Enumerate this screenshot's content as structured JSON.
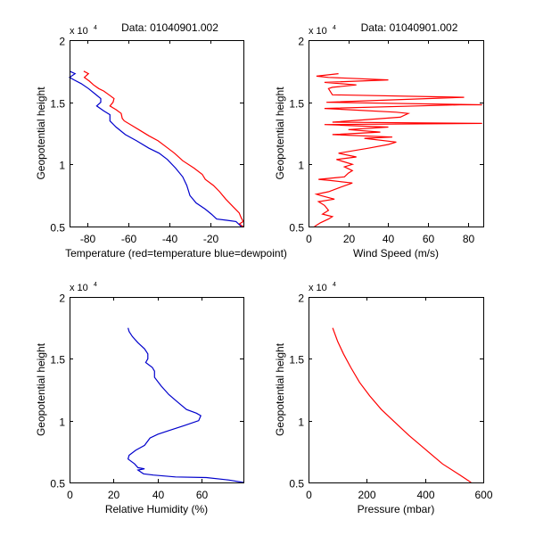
{
  "figure": {
    "background": "#ffffff"
  },
  "chart_data": [
    {
      "id": "temperature",
      "type": "line",
      "title": "Data: 01040901.002",
      "xlabel": "Temperature (red=temperature blue=dewpoint)",
      "ylabel": "Geopotential height",
      "y_multiplier": "x 10",
      "y_multiplier_exp": "4",
      "xlim": [
        -88.7,
        -3.9
      ],
      "ylim": [
        5000,
        20000
      ],
      "xticks": [
        -80,
        -60,
        -40,
        -20
      ],
      "xtick_labels": [
        "-80",
        "-60",
        "-40",
        "-20"
      ],
      "yticks": [
        5000,
        10000,
        15000,
        20000
      ],
      "ytick_labels": [
        "0.5",
        "1",
        "1.5",
        "2"
      ],
      "grid": false,
      "series": [
        {
          "name": "temperature",
          "color": "#ff0000",
          "points": [
            [
              -81.8,
              17500
            ],
            [
              -79.5,
              17300
            ],
            [
              -81.5,
              17000
            ],
            [
              -79.0,
              16700
            ],
            [
              -77.0,
              16400
            ],
            [
              -74.5,
              16100
            ],
            [
              -72.0,
              15900
            ],
            [
              -69.5,
              15600
            ],
            [
              -67.0,
              15300
            ],
            [
              -67.5,
              15000
            ],
            [
              -69.0,
              14700
            ],
            [
              -66.0,
              14400
            ],
            [
              -63.5,
              14100
            ],
            [
              -63.0,
              13700
            ],
            [
              -62.0,
              13500
            ],
            [
              -58.0,
              13100
            ],
            [
              -54.0,
              12700
            ],
            [
              -50.0,
              12300
            ],
            [
              -45.5,
              11900
            ],
            [
              -41.5,
              11400
            ],
            [
              -37.5,
              10900
            ],
            [
              -33.5,
              10300
            ],
            [
              -28.0,
              9700
            ],
            [
              -24.0,
              9200
            ],
            [
              -22.5,
              8800
            ],
            [
              -18.5,
              8300
            ],
            [
              -15.5,
              7800
            ],
            [
              -12.5,
              7200
            ],
            [
              -9.0,
              6600
            ],
            [
              -6.0,
              6100
            ],
            [
              -5.0,
              5700
            ],
            [
              -4.0,
              5400
            ],
            [
              -6.0,
              5200
            ],
            [
              -4.0,
              5000
            ]
          ]
        },
        {
          "name": "dewpoint",
          "color": "#0000cc",
          "points": [
            [
              -88.7,
              17500
            ],
            [
              -86.0,
              17300
            ],
            [
              -88.7,
              17000
            ],
            [
              -86.5,
              16800
            ],
            [
              -83.0,
              16500
            ],
            [
              -79.5,
              16100
            ],
            [
              -76.5,
              15700
            ],
            [
              -73.5,
              15300
            ],
            [
              -73.5,
              15000
            ],
            [
              -75.5,
              14700
            ],
            [
              -72.0,
              14300
            ],
            [
              -69.0,
              14000
            ],
            [
              -69.0,
              13500
            ],
            [
              -66.0,
              13000
            ],
            [
              -61.5,
              12400
            ],
            [
              -56.0,
              11900
            ],
            [
              -50.0,
              11300
            ],
            [
              -45.0,
              10900
            ],
            [
              -41.0,
              10400
            ],
            [
              -37.0,
              9700
            ],
            [
              -33.5,
              9000
            ],
            [
              -31.5,
              8300
            ],
            [
              -30.0,
              7500
            ],
            [
              -27.0,
              6900
            ],
            [
              -22.5,
              6400
            ],
            [
              -19.5,
              6000
            ],
            [
              -17.0,
              5600
            ],
            [
              -12.0,
              5500
            ],
            [
              -7.5,
              5400
            ],
            [
              -5.0,
              5000
            ]
          ]
        }
      ]
    },
    {
      "id": "wind-speed",
      "type": "line",
      "title": "Data: 01040901.002",
      "xlabel": "Wind Speed (m/s)",
      "ylabel": "Geopotential height",
      "y_multiplier": "x 10",
      "y_multiplier_exp": "4",
      "xlim": [
        0,
        87.6
      ],
      "ylim": [
        5000,
        20000
      ],
      "xticks": [
        0,
        20,
        40,
        60,
        80
      ],
      "xtick_labels": [
        "0",
        "20",
        "40",
        "60",
        "80"
      ],
      "yticks": [
        5000,
        10000,
        15000,
        20000
      ],
      "ytick_labels": [
        "0.5",
        "1",
        "1.5",
        "2"
      ],
      "grid": false,
      "series": [
        {
          "name": "wind-speed",
          "color": "#ff0000",
          "points": [
            [
              3,
              5000
            ],
            [
              6,
              5300
            ],
            [
              10,
              5600
            ],
            [
              12,
              5800
            ],
            [
              7,
              6000
            ],
            [
              10,
              6300
            ],
            [
              8,
              6700
            ],
            [
              5,
              7000
            ],
            [
              13,
              7200
            ],
            [
              6,
              7500
            ],
            [
              4,
              7600
            ],
            [
              10,
              7800
            ],
            [
              15,
              8100
            ],
            [
              22,
              8500
            ],
            [
              11,
              8700
            ],
            [
              5,
              8800
            ],
            [
              18,
              9000
            ],
            [
              20,
              9300
            ],
            [
              22,
              9500
            ],
            [
              18,
              9800
            ],
            [
              22,
              10000
            ],
            [
              14,
              10400
            ],
            [
              24,
              10600
            ],
            [
              15,
              10900
            ],
            [
              30,
              11300
            ],
            [
              40,
              11600
            ],
            [
              44,
              11800
            ],
            [
              28,
              12100
            ],
            [
              42,
              12200
            ],
            [
              12,
              12400
            ],
            [
              36,
              12600
            ],
            [
              20,
              12800
            ],
            [
              40,
              13000
            ],
            [
              8,
              13200
            ],
            [
              87,
              13300
            ],
            [
              12,
              13400
            ],
            [
              46,
              13800
            ],
            [
              50,
              14100
            ],
            [
              44,
              14200
            ],
            [
              8,
              14500
            ],
            [
              76,
              14800
            ],
            [
              87,
              14800
            ],
            [
              9,
              15000
            ],
            [
              78,
              15400
            ],
            [
              12,
              15600
            ],
            [
              10,
              16100
            ],
            [
              12,
              16200
            ],
            [
              24,
              16400
            ],
            [
              8,
              16600
            ],
            [
              40,
              16800
            ],
            [
              10,
              17000
            ],
            [
              4,
              17100
            ],
            [
              15,
              17300
            ]
          ]
        }
      ]
    },
    {
      "id": "relative-humidity",
      "type": "line",
      "title": "",
      "xlabel": "Relative Humidity (%)",
      "ylabel": "Geopotential height",
      "y_multiplier": "x 10",
      "y_multiplier_exp": "4",
      "xlim": [
        0,
        78.8
      ],
      "ylim": [
        5000,
        20000
      ],
      "xticks": [
        0,
        20,
        40,
        60
      ],
      "xtick_labels": [
        "0",
        "20",
        "40",
        "60"
      ],
      "yticks": [
        5000,
        10000,
        15000,
        20000
      ],
      "ytick_labels": [
        "0.5",
        "1",
        "1.5",
        "2"
      ],
      "grid": false,
      "series": [
        {
          "name": "relative-humidity",
          "color": "#0000cc",
          "points": [
            [
              26.5,
              17500
            ],
            [
              27.0,
              17200
            ],
            [
              28.5,
              16800
            ],
            [
              31.0,
              16300
            ],
            [
              34.0,
              15800
            ],
            [
              35.5,
              15400
            ],
            [
              35.5,
              15000
            ],
            [
              34.5,
              14700
            ],
            [
              37.5,
              14300
            ],
            [
              38.5,
              14000
            ],
            [
              38.5,
              13500
            ],
            [
              41.5,
              12800
            ],
            [
              45.0,
              12100
            ],
            [
              49.0,
              11500
            ],
            [
              53.0,
              10900
            ],
            [
              57.5,
              10600
            ],
            [
              59.5,
              10400
            ],
            [
              58.5,
              10000
            ],
            [
              52.0,
              9600
            ],
            [
              45.0,
              9200
            ],
            [
              40.0,
              8900
            ],
            [
              36.5,
              8600
            ],
            [
              34.0,
              8000
            ],
            [
              30.0,
              7600
            ],
            [
              27.0,
              7200
            ],
            [
              26.5,
              6900
            ],
            [
              29.5,
              6500
            ],
            [
              31.0,
              6200
            ],
            [
              34.0,
              6100
            ],
            [
              31.0,
              6000
            ],
            [
              33.5,
              5700
            ],
            [
              38.0,
              5600
            ],
            [
              48.0,
              5450
            ],
            [
              62.0,
              5400
            ],
            [
              72.0,
              5200
            ],
            [
              78.8,
              5000
            ]
          ]
        }
      ]
    },
    {
      "id": "pressure",
      "type": "line",
      "title": "",
      "xlabel": "Pressure (mbar)",
      "ylabel": "Geopotential height",
      "y_multiplier": "x 10",
      "y_multiplier_exp": "4",
      "xlim": [
        0,
        600
      ],
      "ylim": [
        5000,
        20000
      ],
      "xticks": [
        0,
        200,
        400,
        600
      ],
      "xtick_labels": [
        "0",
        "200",
        "400",
        "600"
      ],
      "yticks": [
        5000,
        10000,
        15000,
        20000
      ],
      "ytick_labels": [
        "0.5",
        "1",
        "1.5",
        "2"
      ],
      "grid": false,
      "series": [
        {
          "name": "pressure",
          "color": "#ff0000",
          "points": [
            [
              83,
              17500
            ],
            [
              100,
              16400
            ],
            [
              120,
              15400
            ],
            [
              145,
              14300
            ],
            [
              175,
              13100
            ],
            [
              210,
              12000
            ],
            [
              250,
              10900
            ],
            [
              295,
              9900
            ],
            [
              345,
              8800
            ],
            [
              400,
              7700
            ],
            [
              460,
              6500
            ],
            [
              520,
              5600
            ],
            [
              558,
              5000
            ]
          ]
        }
      ]
    }
  ]
}
